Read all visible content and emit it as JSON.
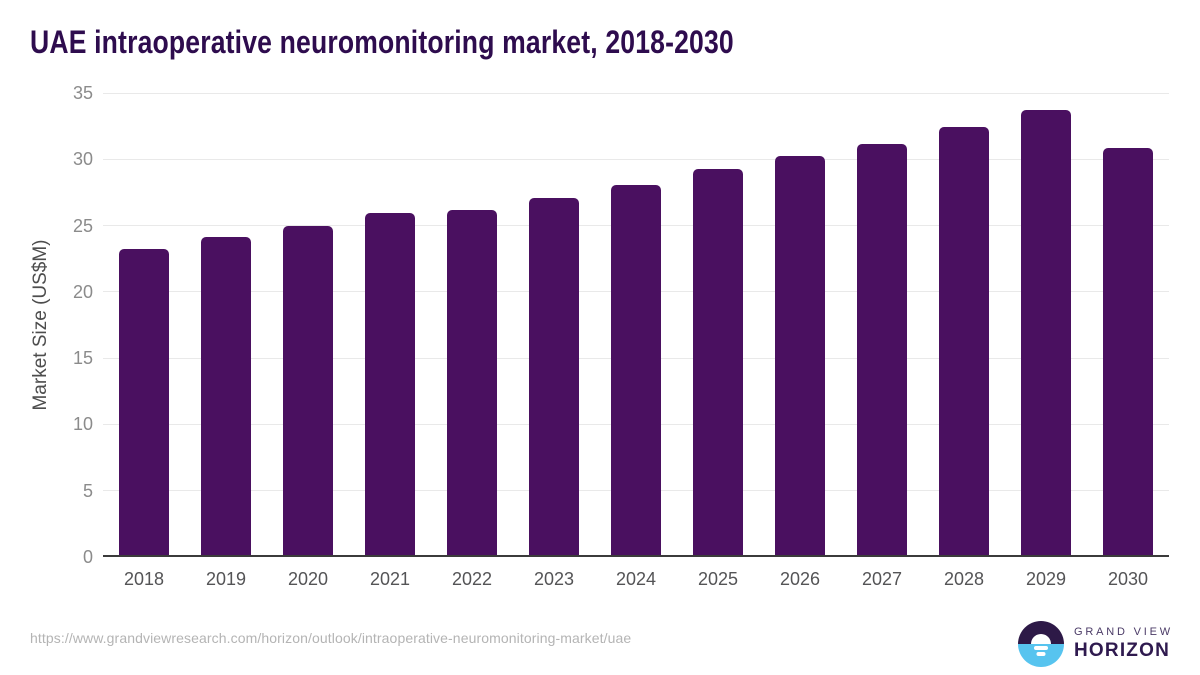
{
  "title": "UAE intraoperative neuromonitoring market, 2018-2030",
  "source_url": "https://www.grandviewresearch.com/horizon/outlook/intraoperative-neuromonitoring-market/uae",
  "logo": {
    "top_text": "GRAND VIEW",
    "bottom_text": "HORIZON"
  },
  "colors": {
    "bar": "#4a1060",
    "title": "#2e0c4e",
    "axis_line": "#3b3b3b",
    "gridline": "#e9e9e9",
    "y_tick": "#8b8b8b",
    "x_tick": "#545456",
    "y_axis_title": "#4d4d4d",
    "url": "#b4b4b4",
    "logo_dark": "#2d1947",
    "logo_blue": "#57c4ef"
  },
  "chart_data": {
    "type": "bar",
    "title": "UAE intraoperative neuromonitoring market, 2018-2030",
    "categories": [
      "2018",
      "2019",
      "2020",
      "2021",
      "2022",
      "2023",
      "2024",
      "2025",
      "2026",
      "2027",
      "2028",
      "2029",
      "2030"
    ],
    "values": [
      23.1,
      24.0,
      24.8,
      25.8,
      26.0,
      26.9,
      27.9,
      29.1,
      30.1,
      31.0,
      32.3,
      33.6,
      30.7
    ],
    "xlabel": "",
    "ylabel": "Market Size (US$M)",
    "ylim": [
      0,
      35
    ],
    "yticks": [
      0,
      5,
      10,
      15,
      20,
      25,
      30,
      35
    ],
    "grid": true,
    "legend": false
  }
}
